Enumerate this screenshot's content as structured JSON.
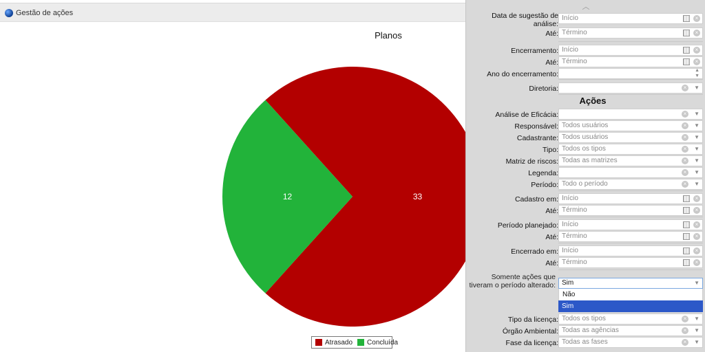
{
  "app": {
    "title": "Gestão de ações"
  },
  "chart_data": {
    "type": "pie",
    "title": "Planos",
    "categories": [
      "Atrasado",
      "Concluída"
    ],
    "values": [
      33,
      12
    ],
    "colors": [
      "#b30000",
      "#22b33a"
    ],
    "legend_position": "bottom"
  },
  "filters": {
    "top": [
      {
        "label": "Data de sugestão de análise:",
        "value": "",
        "placeholder": "Início",
        "type": "date"
      },
      {
        "label": "Até:",
        "value": "",
        "placeholder": "Término",
        "type": "date"
      },
      {
        "label": "Encerramento:",
        "value": "",
        "placeholder": "Início",
        "type": "date"
      },
      {
        "label": "Até:",
        "value": "",
        "placeholder": "Término",
        "type": "date"
      },
      {
        "label": "Ano do encerramento:",
        "value": "",
        "placeholder": "",
        "type": "spinner"
      },
      {
        "label": "Diretoria:",
        "value": "",
        "placeholder": "",
        "type": "select"
      }
    ],
    "section_title": "Ações",
    "actions": [
      {
        "label": "Análise de Eficácia:",
        "value": "",
        "type": "select"
      },
      {
        "label": "Responsável:",
        "value": "Todos usuários",
        "type": "select"
      },
      {
        "label": "Cadastrante:",
        "value": "Todos usuários",
        "type": "select"
      },
      {
        "label": "Tipo:",
        "value": "Todos os tipos",
        "type": "select"
      },
      {
        "label": "Matriz de riscos:",
        "value": "Todas as matrizes",
        "type": "select"
      },
      {
        "label": "Legenda:",
        "value": "",
        "type": "select"
      },
      {
        "label": "Período:",
        "value": "Todo o período",
        "type": "select"
      },
      {
        "label": "Cadastro em:",
        "value": "Início",
        "type": "date"
      },
      {
        "label": "Até:",
        "value": "Término",
        "type": "date"
      },
      {
        "label": "Período planejado:",
        "value": "Início",
        "type": "date"
      },
      {
        "label": "Até:",
        "value": "Término",
        "type": "date"
      },
      {
        "label": "Encerrado em:",
        "value": "Início",
        "type": "date"
      },
      {
        "label": "Até:",
        "value": "Término",
        "type": "date"
      }
    ],
    "altered": {
      "label": "Somente ações que tiveram o período alterado:",
      "value": "Sim",
      "options": [
        "Não",
        "Sim"
      ]
    },
    "bottom": [
      {
        "label": "Tipo da licença:",
        "value": "Todos os tipos",
        "type": "select"
      },
      {
        "label": "Órgão Ambiental:",
        "value": "Todas as agências",
        "type": "select"
      },
      {
        "label": "Fase da licença:",
        "value": "Todas as fases",
        "type": "select"
      }
    ]
  }
}
